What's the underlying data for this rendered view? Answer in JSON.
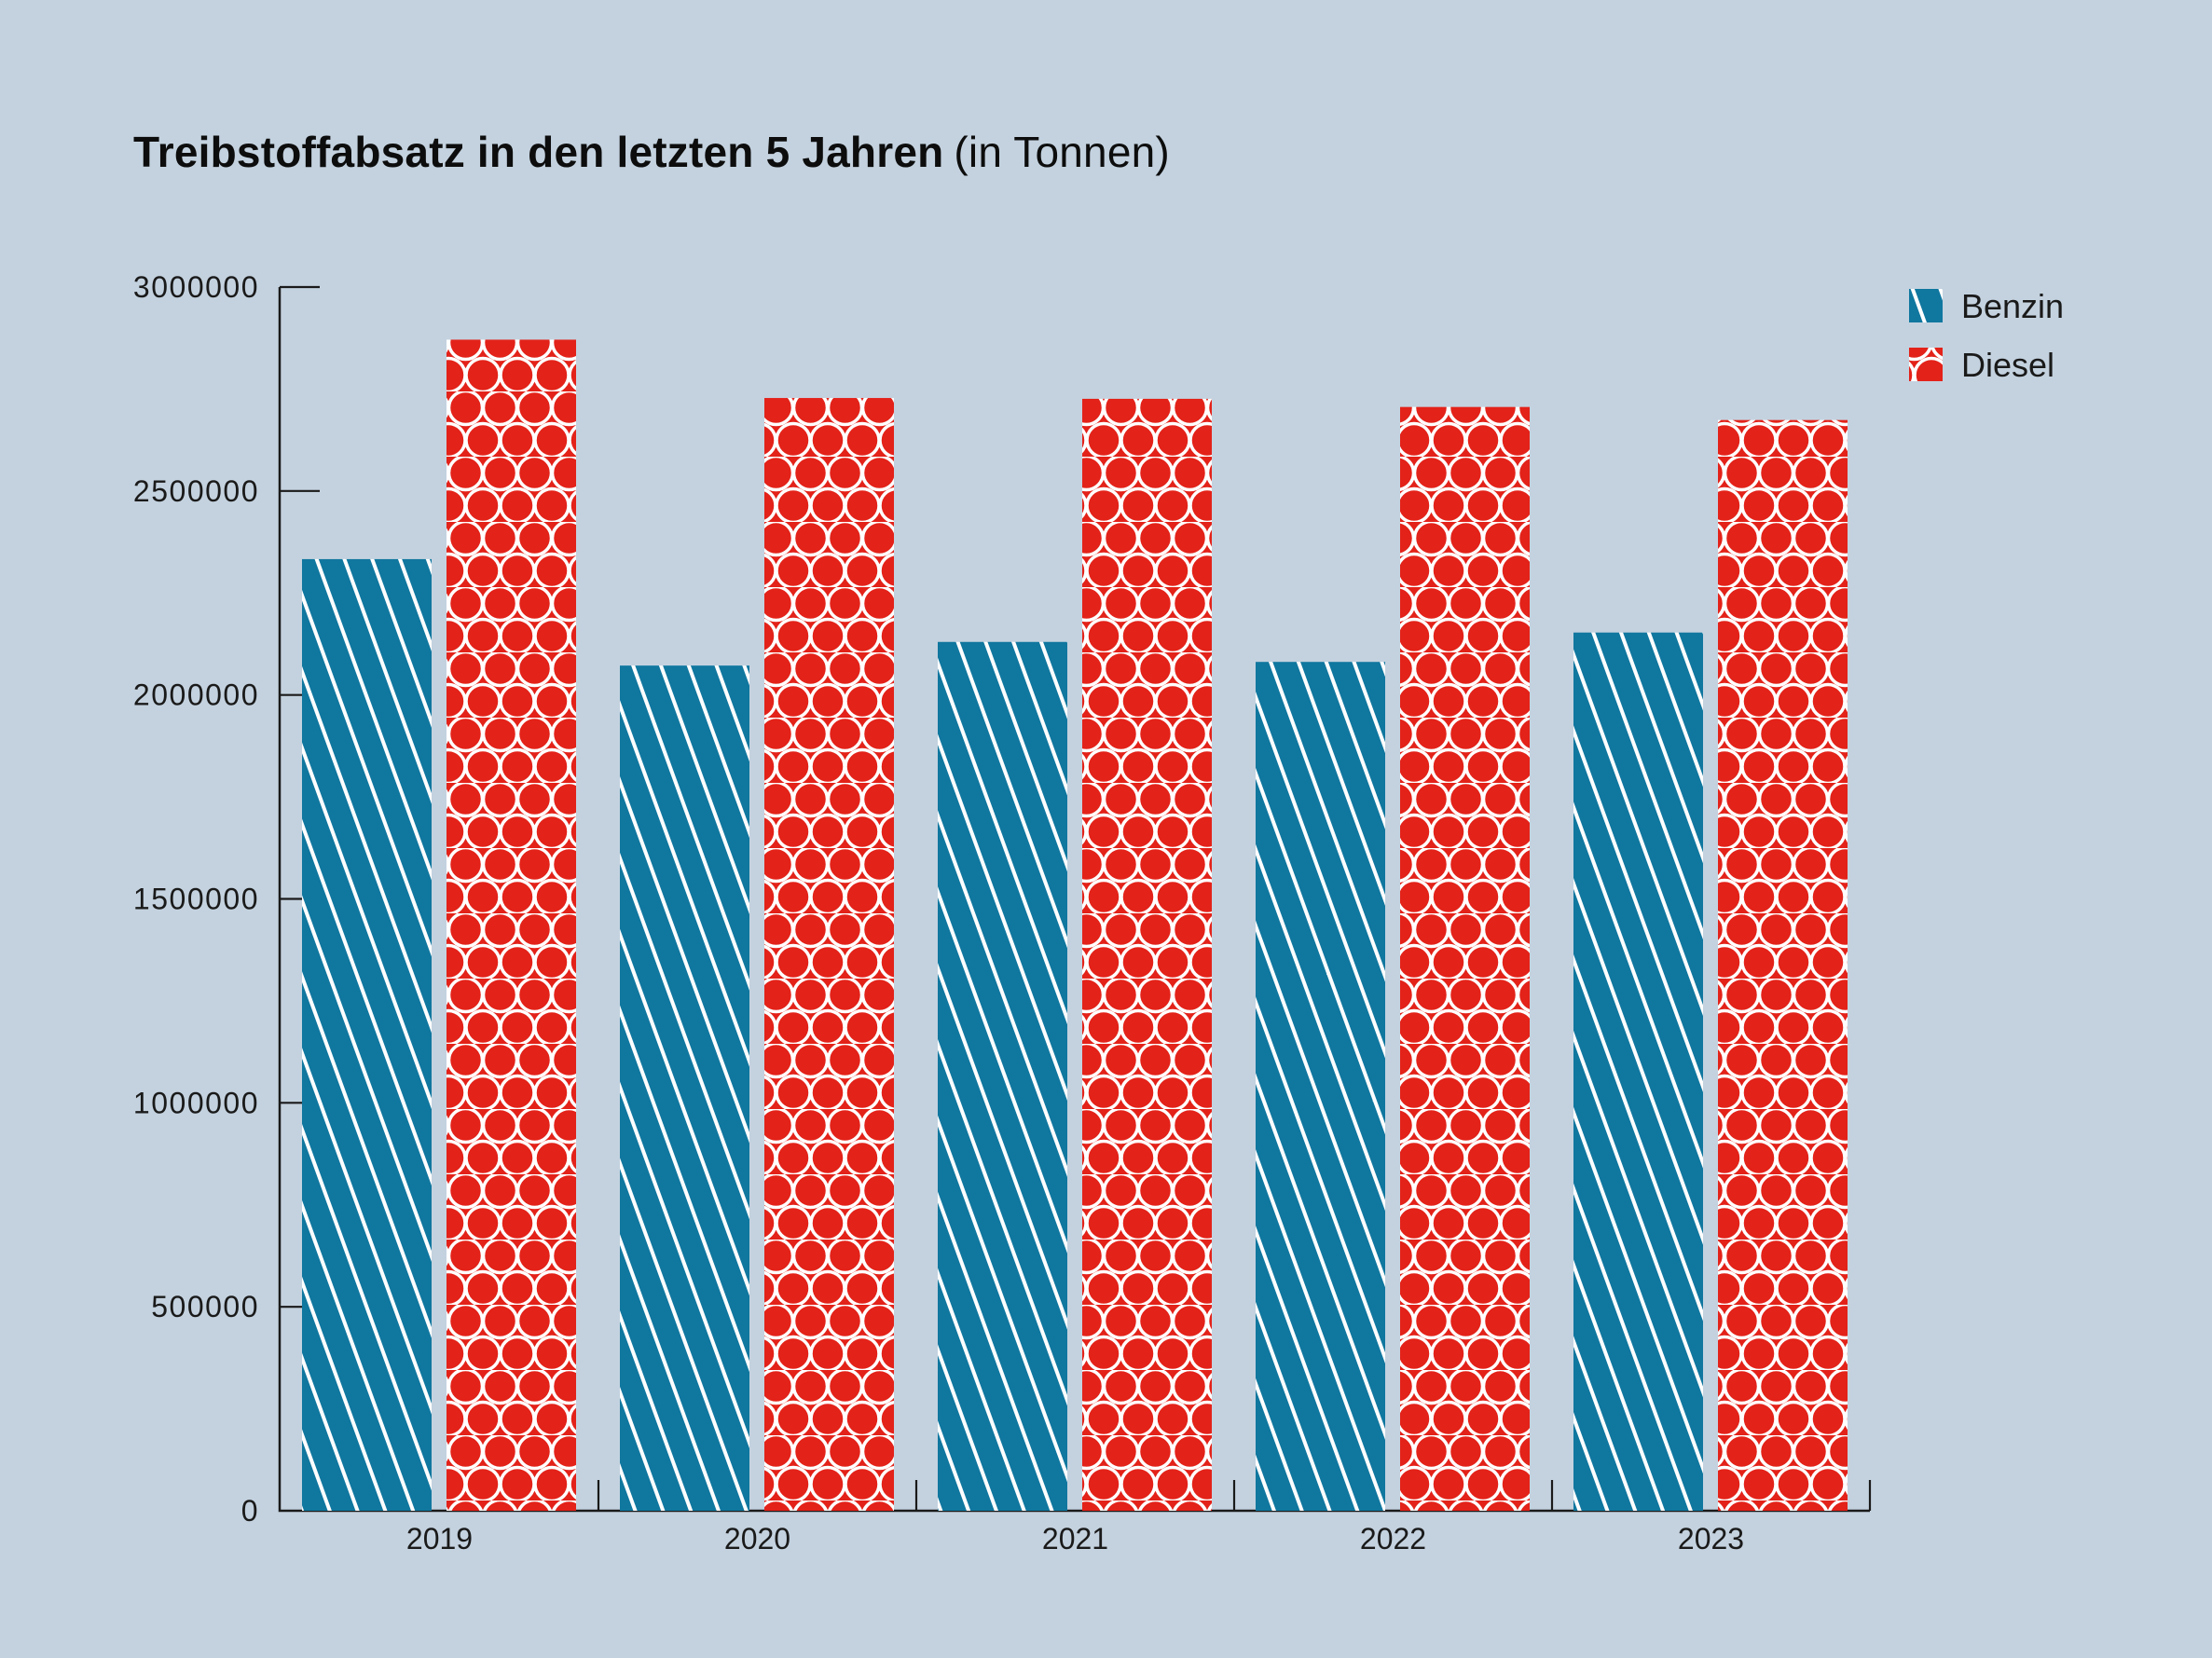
{
  "title": {
    "main": "Treibstoffabsatz in den letzten 5 Jahren",
    "suffix": "(in Tonnen)"
  },
  "legend": {
    "items": [
      {
        "label": "Benzin"
      },
      {
        "label": "Diesel"
      }
    ]
  },
  "colors": {
    "background": "#c4d2df",
    "axis": "#1a1a1a",
    "benzin": "#10779f",
    "diesel": "#e32219",
    "pattern_line": "#ffffff"
  },
  "chart_data": {
    "type": "bar",
    "title": "Treibstoffabsatz in den letzten 5 Jahren (in Tonnen)",
    "categories": [
      "2019",
      "2020",
      "2021",
      "2022",
      "2023"
    ],
    "series": [
      {
        "name": "Benzin",
        "color": "#10779f",
        "pattern": "diagonal-lines",
        "values": [
          2333000,
          2072000,
          2130000,
          2081000,
          2153000
        ]
      },
      {
        "name": "Diesel",
        "color": "#e32219",
        "pattern": "circle-outlines",
        "values": [
          2871000,
          2728000,
          2726000,
          2706000,
          2674000
        ]
      }
    ],
    "xlabel": "",
    "ylabel": "",
    "ylim": [
      0,
      3000000
    ],
    "ytick_interval": 500000,
    "yticks": [
      0,
      500000,
      1000000,
      1500000,
      2000000,
      2500000,
      3000000
    ],
    "ytick_labels": [
      "0",
      "500000",
      "1000000",
      "1500000",
      "2000000",
      "2500000",
      "3000000"
    ],
    "grid": false,
    "legend_position": "top-right"
  }
}
